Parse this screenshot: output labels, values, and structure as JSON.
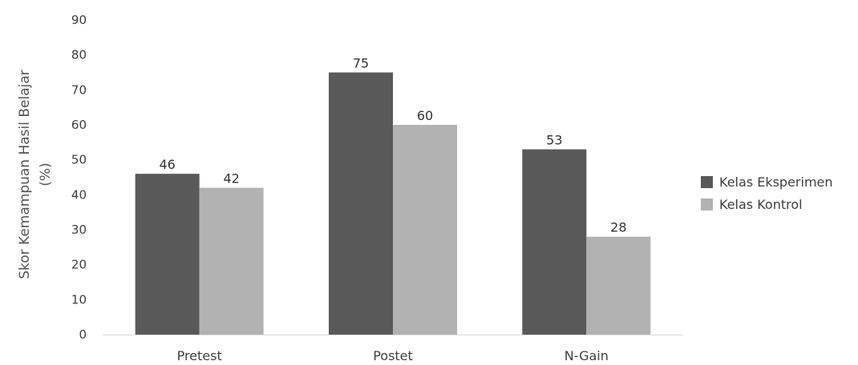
{
  "chart_data": {
    "type": "bar",
    "title": "",
    "categories": [
      "Pretest",
      "Postet",
      "N-Gain"
    ],
    "series": [
      {
        "name": "Kelas Eksperimen",
        "values": [
          46,
          75,
          53
        ],
        "color": "#595959"
      },
      {
        "name": "Kelas Kontrol",
        "values": [
          42,
          60,
          28
        ],
        "color": "#b2b2b2"
      }
    ],
    "xlabel": "",
    "ylabel_lines": [
      "Skor Kemampuan Hasil Belajar",
      "(%)"
    ],
    "ylim": [
      0,
      90
    ],
    "yticks": [
      0,
      10,
      20,
      30,
      40,
      50,
      60,
      70,
      80,
      90
    ],
    "grid": false,
    "legend_position": "right",
    "data_labels": true
  }
}
